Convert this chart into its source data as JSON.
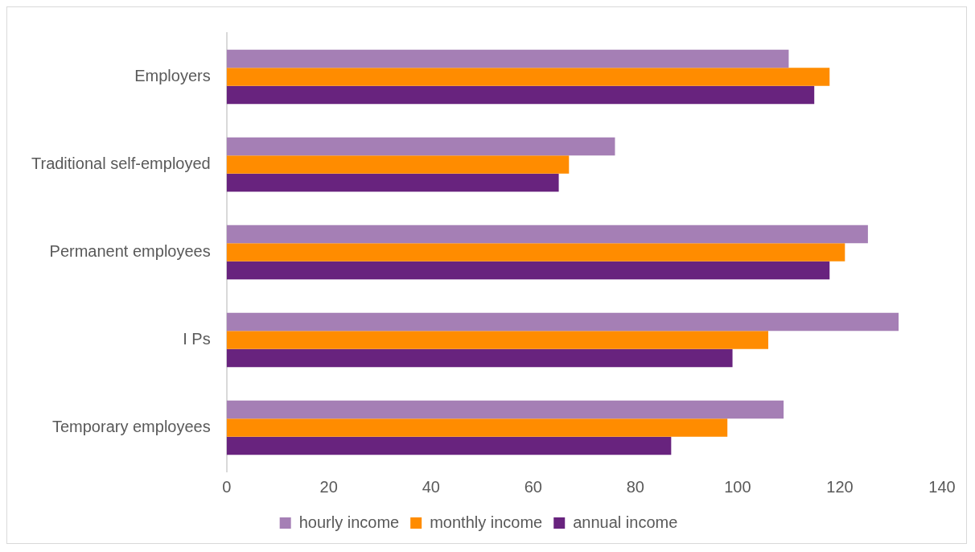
{
  "chart_data": {
    "type": "bar",
    "orientation": "horizontal",
    "categories": [
      "Employers",
      "Traditional self-employed",
      "Permanent employees",
      "I Ps",
      "Temporary employees"
    ],
    "series": [
      {
        "name": "hourly income",
        "color": "#a57fb5",
        "values": [
          110,
          76,
          125.5,
          131.5,
          109
        ]
      },
      {
        "name": "monthly income",
        "color": "#ff8c00",
        "values": [
          118,
          67,
          121,
          106,
          98
        ]
      },
      {
        "name": "annual income",
        "color": "#68237e",
        "values": [
          115,
          65,
          118,
          99,
          87
        ]
      }
    ],
    "xlim": [
      0,
      140
    ],
    "xticks": [
      0,
      20,
      40,
      60,
      80,
      100,
      120,
      140
    ],
    "grid": false,
    "legend": "bottom"
  }
}
